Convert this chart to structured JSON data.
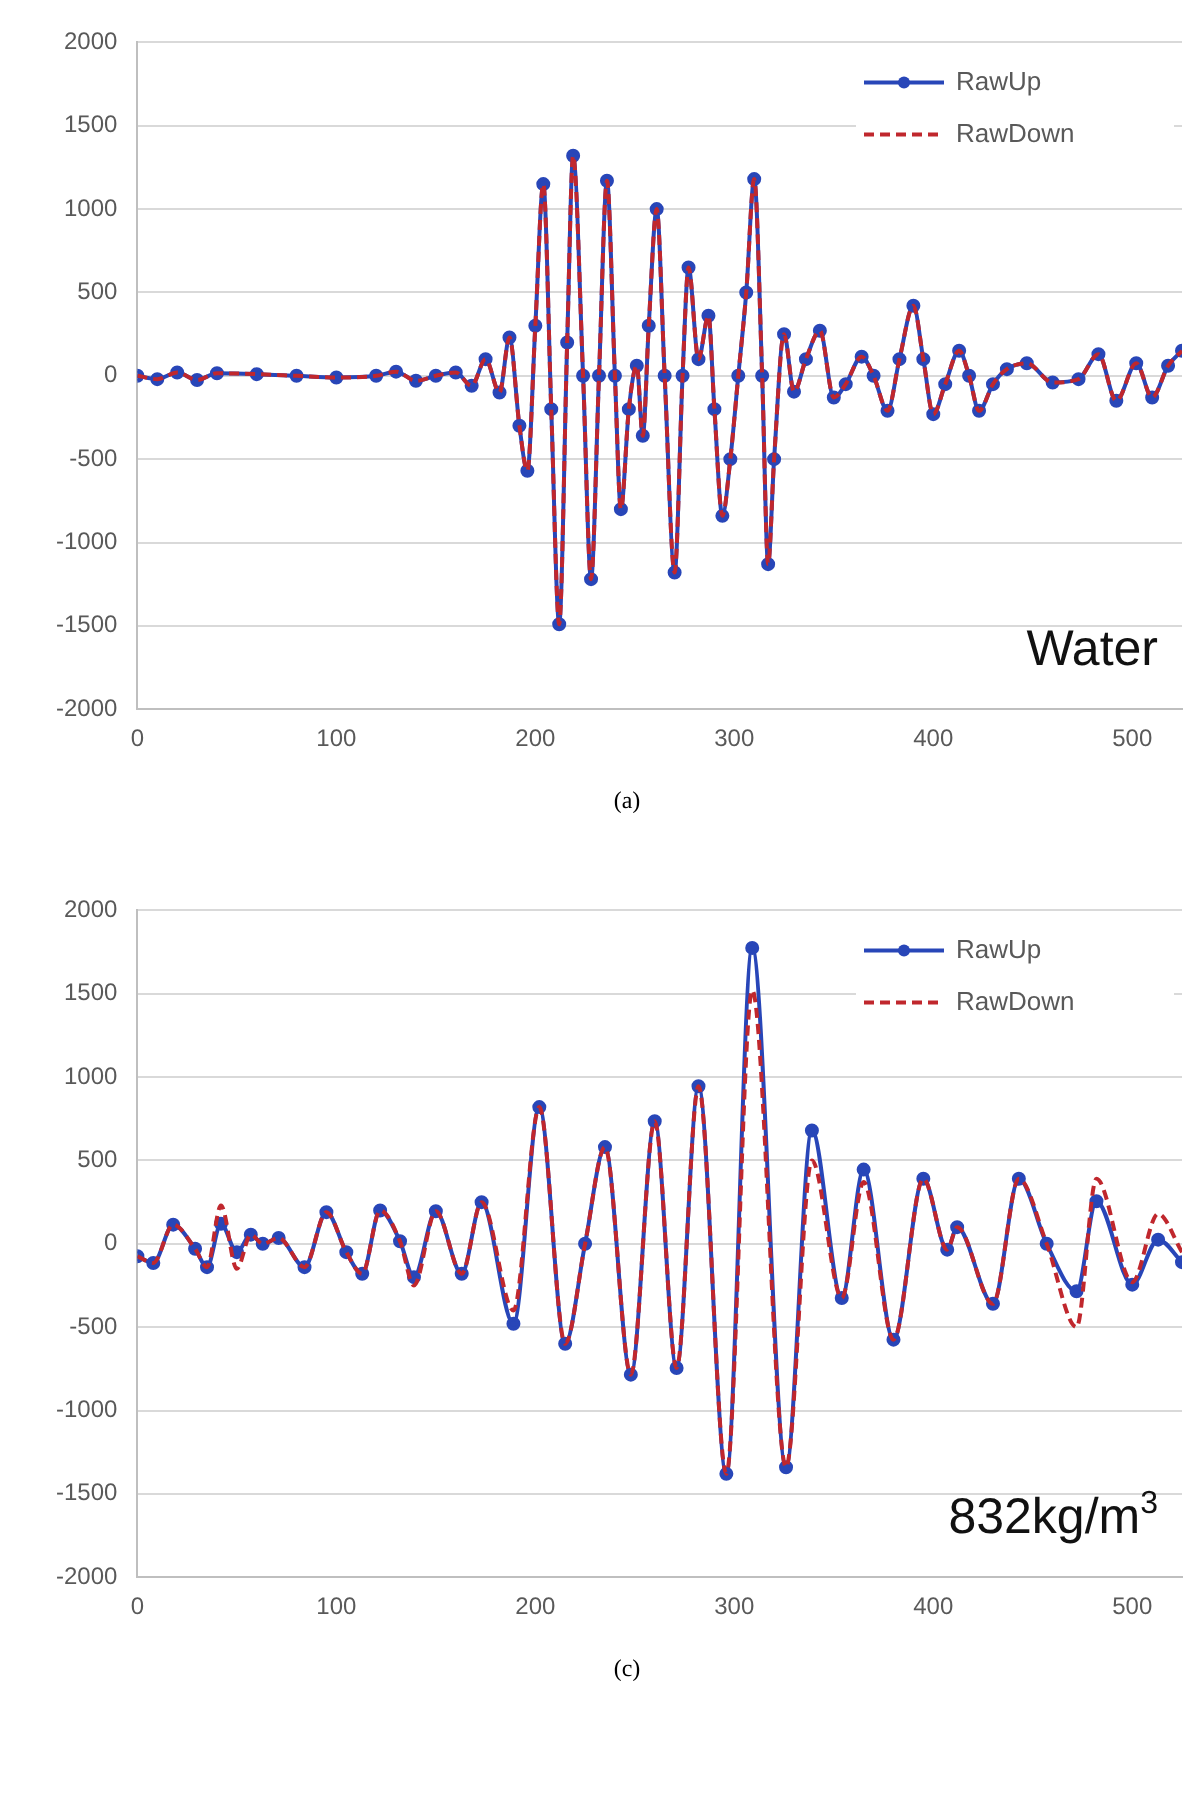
{
  "chart_data": [
    {
      "type": "line",
      "xlim": [
        0,
        525
      ],
      "xticks": [
        0,
        100,
        200,
        300,
        400,
        500
      ],
      "ylim": [
        -2000,
        2000
      ],
      "yticks": [
        -2000,
        -1500,
        -1000,
        -500,
        0,
        500,
        1000,
        1500,
        2000
      ],
      "grid": "y",
      "legend": "top right",
      "annotations": [
        "Water",
        "(a)"
      ],
      "series": [
        {
          "name": "RawUp",
          "color": "#2846b8",
          "marker": "circle",
          "line_style": "solid",
          "x": [
            0,
            10,
            20,
            30,
            40,
            60,
            80,
            100,
            120,
            130,
            140,
            150,
            160,
            168,
            175,
            182,
            187,
            192,
            196,
            200,
            204,
            208,
            212,
            216,
            219,
            224,
            228,
            232,
            236,
            240,
            243,
            247,
            251,
            254,
            257,
            261,
            265,
            270,
            274,
            277,
            282,
            287,
            290,
            294,
            298,
            302,
            306,
            310,
            314,
            317,
            320,
            325,
            330,
            336,
            343,
            350,
            356,
            364,
            370,
            377,
            383,
            390,
            395,
            400,
            406,
            413,
            418,
            423,
            430,
            437,
            447,
            460,
            473,
            483,
            492,
            502,
            510,
            518,
            525
          ],
          "values": [
            0,
            -20,
            20,
            -25,
            15,
            10,
            0,
            -10,
            0,
            25,
            -30,
            0,
            20,
            -60,
            100,
            -100,
            230,
            -300,
            -570,
            300,
            1150,
            -200,
            -1490,
            200,
            1320,
            0,
            -1220,
            0,
            1170,
            0,
            -800,
            -200,
            60,
            -360,
            300,
            1000,
            0,
            -1180,
            0,
            650,
            100,
            360,
            -200,
            -840,
            -500,
            0,
            500,
            1180,
            0,
            -1130,
            -500,
            250,
            -95,
            100,
            270,
            -130,
            -50,
            115,
            0,
            -210,
            100,
            420,
            100,
            -230,
            -50,
            150,
            0,
            -210,
            -50,
            40,
            75,
            -40,
            -20,
            130,
            -150,
            75,
            -130,
            60,
            150
          ]
        },
        {
          "name": "RawDown",
          "color": "#c0272d",
          "marker": "none",
          "line_style": "dashed",
          "x": [
            0,
            10,
            20,
            30,
            40,
            60,
            80,
            100,
            120,
            130,
            140,
            150,
            160,
            168,
            175,
            182,
            187,
            192,
            196,
            200,
            204,
            208,
            212,
            216,
            219,
            224,
            228,
            232,
            236,
            240,
            243,
            247,
            251,
            254,
            257,
            261,
            265,
            270,
            274,
            277,
            282,
            287,
            290,
            294,
            298,
            302,
            306,
            310,
            314,
            317,
            320,
            325,
            330,
            336,
            343,
            350,
            356,
            364,
            370,
            377,
            383,
            390,
            395,
            400,
            406,
            413,
            418,
            423,
            430,
            437,
            447,
            460,
            473,
            483,
            492,
            502,
            510,
            518,
            525
          ],
          "values": [
            0,
            -20,
            20,
            -25,
            15,
            10,
            0,
            -10,
            0,
            25,
            -30,
            0,
            20,
            -60,
            100,
            -100,
            230,
            -300,
            -570,
            300,
            1150,
            -200,
            -1490,
            200,
            1320,
            0,
            -1220,
            0,
            1170,
            0,
            -800,
            -200,
            60,
            -360,
            300,
            1000,
            0,
            -1180,
            0,
            650,
            100,
            360,
            -200,
            -840,
            -500,
            0,
            500,
            1180,
            0,
            -1130,
            -500,
            250,
            -95,
            100,
            270,
            -130,
            -50,
            115,
            0,
            -210,
            100,
            420,
            100,
            -230,
            -50,
            150,
            0,
            -210,
            -50,
            40,
            75,
            -40,
            -20,
            130,
            -150,
            75,
            -130,
            60,
            150
          ]
        }
      ]
    },
    {
      "type": "line",
      "xlim": [
        0,
        525
      ],
      "xticks": [
        0,
        100,
        200,
        300,
        400,
        500
      ],
      "ylim": [
        -2000,
        2000
      ],
      "yticks": [
        -2000,
        -1500,
        -1000,
        -500,
        0,
        500,
        1000,
        1500,
        2000
      ],
      "grid": "y",
      "legend": "top right",
      "annotations": [
        "832kg/m$^{3}$",
        "(c)"
      ],
      "series": [
        {
          "name": "RawUp",
          "color": "#2846b8",
          "marker": "circle",
          "line_style": "solid",
          "x": [
            0,
            8,
            18,
            29,
            35,
            42,
            50,
            57,
            63,
            71,
            84,
            95,
            105,
            113,
            122,
            132,
            139,
            150,
            163,
            173,
            189,
            202,
            215,
            225,
            235,
            248,
            260,
            271,
            282,
            296,
            309,
            326,
            339,
            354,
            365,
            380,
            395,
            407,
            412,
            430,
            443,
            457,
            472,
            482,
            500,
            513,
            525
          ],
          "values": [
            -75,
            -115,
            115,
            -30,
            -140,
            120,
            -50,
            55,
            0,
            35,
            -140,
            190,
            -50,
            -180,
            200,
            15,
            -200,
            195,
            -180,
            250,
            -480,
            820,
            -600,
            0,
            580,
            -785,
            735,
            -745,
            945,
            -1380,
            1775,
            -1340,
            680,
            -325,
            445,
            -575,
            390,
            -35,
            100,
            -360,
            390,
            0,
            -285,
            255,
            -245,
            25,
            -110
          ]
        },
        {
          "name": "RawDown",
          "color": "#c0272d",
          "marker": "none",
          "line_style": "dashed",
          "x": [
            0,
            8,
            18,
            29,
            35,
            42,
            50,
            57,
            63,
            71,
            84,
            95,
            105,
            113,
            122,
            132,
            139,
            150,
            163,
            173,
            189,
            202,
            215,
            225,
            235,
            248,
            260,
            271,
            282,
            296,
            309,
            326,
            339,
            354,
            365,
            380,
            395,
            407,
            412,
            430,
            443,
            457,
            472,
            482,
            500,
            513,
            525
          ],
          "values": [
            -75,
            -115,
            115,
            -30,
            -140,
            230,
            -150,
            55,
            0,
            35,
            -140,
            190,
            -50,
            -180,
            200,
            15,
            -250,
            195,
            -180,
            250,
            -400,
            820,
            -600,
            0,
            580,
            -785,
            735,
            -745,
            945,
            -1380,
            1520,
            -1340,
            500,
            -325,
            370,
            -575,
            390,
            -35,
            100,
            -360,
            390,
            0,
            -500,
            390,
            -230,
            180,
            -50
          ]
        }
      ]
    }
  ]
}
